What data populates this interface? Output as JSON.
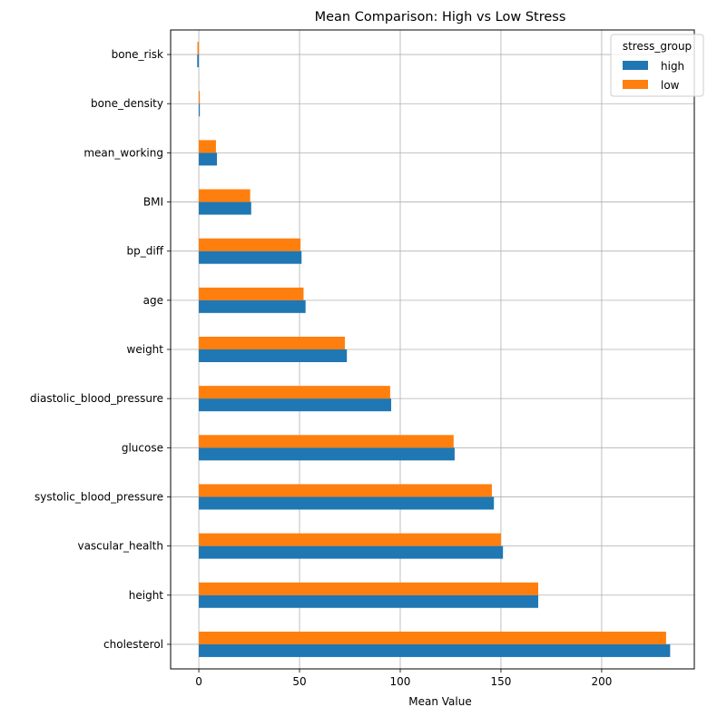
{
  "chart_data": {
    "type": "bar",
    "orientation": "horizontal",
    "title": "Mean Comparison: High vs Low Stress",
    "xlabel": "Mean Value",
    "ylabel": "",
    "xlim": [
      -14,
      246
    ],
    "xticks": [
      0,
      50,
      100,
      150,
      200
    ],
    "grid": true,
    "legend": {
      "title": "stress_group",
      "placement": "top-right"
    },
    "categories": [
      "cholesterol",
      "height",
      "vascular_health",
      "systolic_blood_pressure",
      "glucose",
      "diastolic_blood_pressure",
      "weight",
      "age",
      "bp_diff",
      "BMI",
      "mean_working",
      "bone_density",
      "bone_risk"
    ],
    "series": [
      {
        "name": "high",
        "color": "#1f77b4",
        "values": [
          234,
          168.5,
          151,
          146.5,
          127,
          95.5,
          73.5,
          53,
          51,
          26,
          9,
          0.5,
          -0.8
        ]
      },
      {
        "name": "low",
        "color": "#ff7f0e",
        "values": [
          232,
          168.5,
          150,
          145.5,
          126.5,
          95,
          72.5,
          52,
          50.5,
          25.5,
          8.5,
          0.5,
          -0.7
        ]
      }
    ]
  }
}
